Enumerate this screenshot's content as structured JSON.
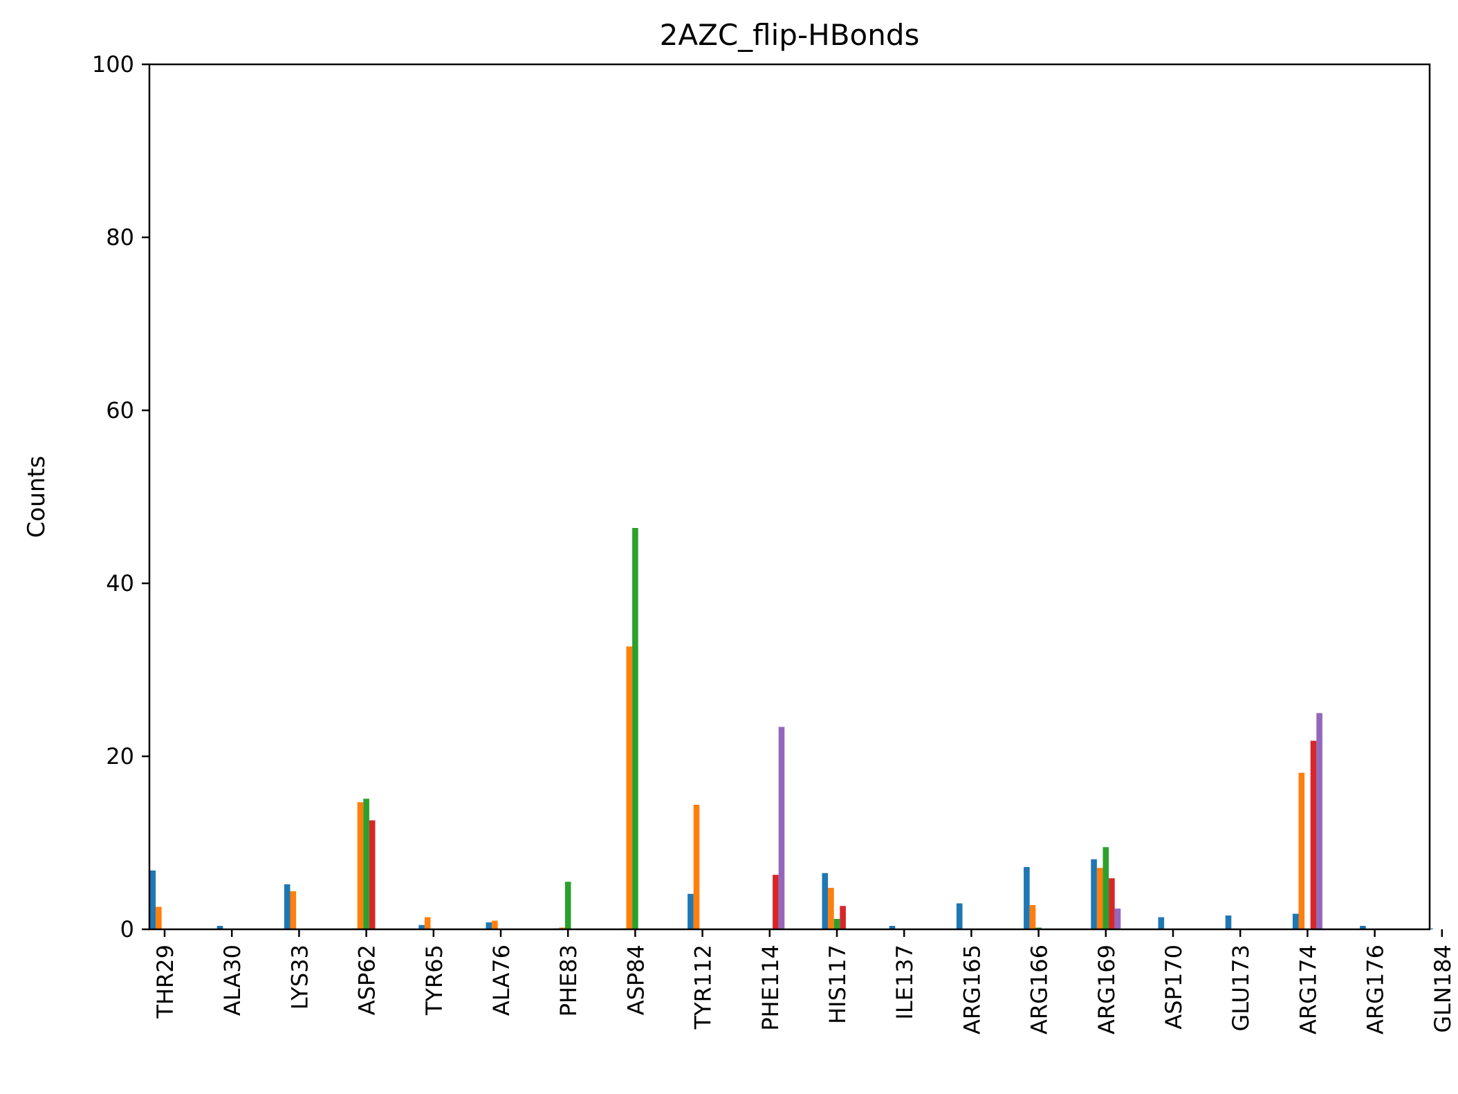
{
  "chart_data": {
    "type": "bar",
    "title": "2AZC_flip-HBonds",
    "xlabel": "",
    "ylabel": "Counts",
    "ylim": [
      0,
      100
    ],
    "yticks": [
      0,
      20,
      40,
      60,
      80,
      100
    ],
    "grid": false,
    "legend": "none",
    "categories": [
      "THR29",
      "ALA30",
      "LYS33",
      "ASP62",
      "TYR65",
      "ALA76",
      "PHE83",
      "ASP84",
      "TYR112",
      "PHE114",
      "HIS117",
      "ILE137",
      "ARG165",
      "ARG166",
      "ARG169",
      "ASP170",
      "GLU173",
      "ARG174",
      "ARG176",
      "GLN184"
    ],
    "series": [
      {
        "color": "#1f77b4",
        "values": [
          6.8,
          0.4,
          5.2,
          0.1,
          0.5,
          0.8,
          0.1,
          0.1,
          4.1,
          0.0,
          6.5,
          0.4,
          3.0,
          7.2,
          8.1,
          1.4,
          1.6,
          1.8,
          0.4,
          0.1
        ]
      },
      {
        "color": "#ff7f0e",
        "values": [
          2.6,
          0.0,
          4.4,
          14.7,
          1.4,
          1.0,
          0.2,
          32.7,
          14.4,
          0.1,
          4.8,
          0.0,
          0.0,
          2.8,
          7.1,
          0.0,
          0.0,
          18.1,
          0.0,
          0.0
        ]
      },
      {
        "color": "#2ca02c",
        "values": [
          0.0,
          0.0,
          0.0,
          15.1,
          0.0,
          0.0,
          5.5,
          46.4,
          0.0,
          0.1,
          1.2,
          0.0,
          0.0,
          0.2,
          9.5,
          0.0,
          0.0,
          0.0,
          0.0,
          0.0
        ]
      },
      {
        "color": "#d62728",
        "values": [
          0.0,
          0.0,
          0.0,
          12.6,
          0.0,
          0.0,
          0.0,
          0.0,
          0.0,
          6.3,
          2.7,
          0.0,
          0.0,
          0.0,
          5.9,
          0.0,
          0.0,
          21.8,
          0.0,
          0.0
        ]
      },
      {
        "color": "#9467bd",
        "values": [
          0.0,
          0.0,
          0.0,
          0.0,
          0.0,
          0.0,
          0.0,
          0.0,
          0.0,
          23.4,
          0.0,
          0.0,
          0.0,
          0.0,
          2.4,
          0.0,
          0.0,
          25.0,
          0.0,
          0.0
        ]
      }
    ]
  }
}
